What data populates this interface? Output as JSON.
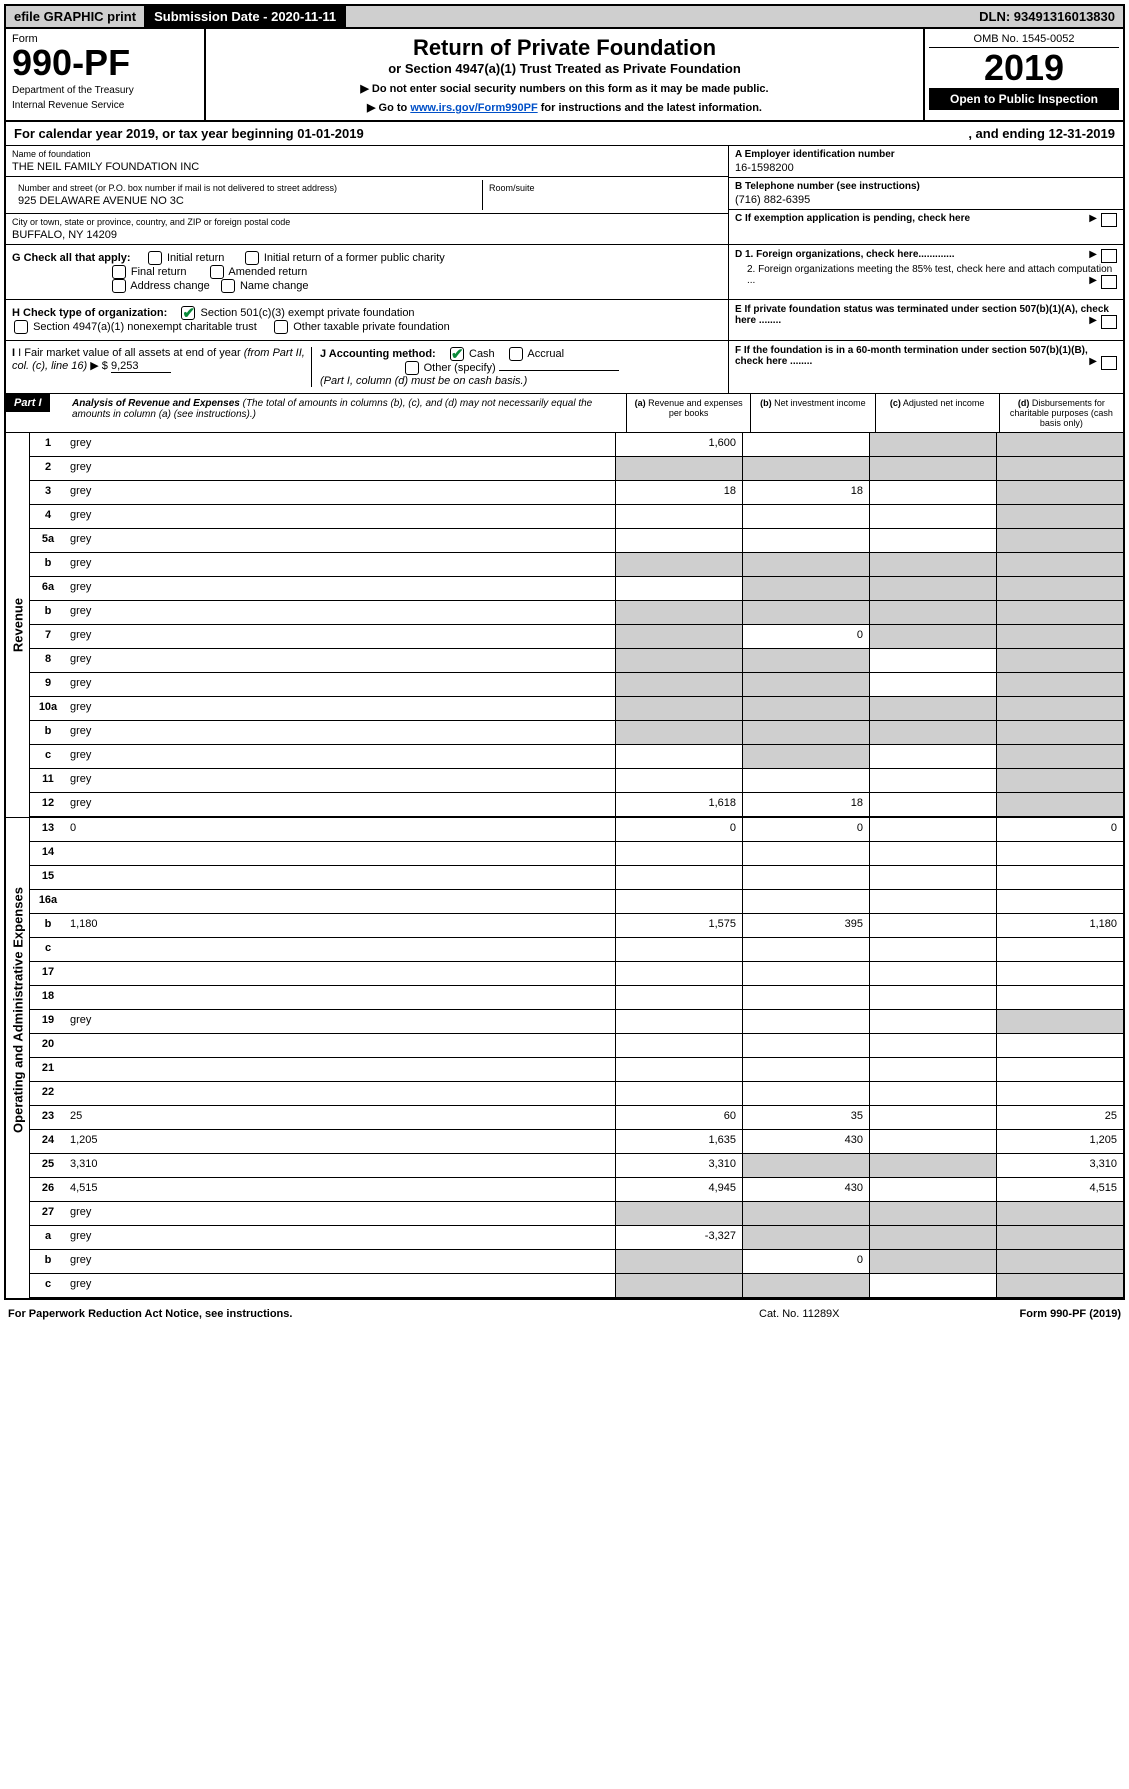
{
  "top": {
    "efile": "efile GRAPHIC print",
    "submission": "Submission Date - 2020-11-11",
    "dln": "DLN: 93491316013830"
  },
  "header": {
    "form_label": "Form",
    "form_number": "990-PF",
    "dept1": "Department of the Treasury",
    "dept2": "Internal Revenue Service",
    "title": "Return of Private Foundation",
    "subtitle": "or Section 4947(a)(1) Trust Treated as Private Foundation",
    "instr1": "▶ Do not enter social security numbers on this form as it may be made public.",
    "instr2_pre": "▶ Go to ",
    "instr2_link": "www.irs.gov/Form990PF",
    "instr2_post": " for instructions and the latest information.",
    "omb": "OMB No. 1545-0052",
    "year": "2019",
    "open": "Open to Public Inspection"
  },
  "calyear": {
    "left": "For calendar year 2019, or tax year beginning 01-01-2019",
    "right": ", and ending 12-31-2019"
  },
  "info": {
    "name_label": "Name of foundation",
    "name": "THE NEIL FAMILY FOUNDATION INC",
    "addr_label": "Number and street (or P.O. box number if mail is not delivered to street address)",
    "addr": "925 DELAWARE AVENUE NO 3C",
    "room_label": "Room/suite",
    "city_label": "City or town, state or province, country, and ZIP or foreign postal code",
    "city": "BUFFALO, NY  14209",
    "a_label": "A Employer identification number",
    "a_val": "16-1598200",
    "b_label": "B Telephone number (see instructions)",
    "b_val": "(716) 882-6395",
    "c_label": "C  If exemption application is pending, check here",
    "d1": "D 1. Foreign organizations, check here.............",
    "d2": "2. Foreign organizations meeting the 85% test, check here and attach computation ...",
    "e": "E  If private foundation status was terminated under section 507(b)(1)(A), check here ........",
    "f": "F  If the foundation is in a 60-month termination under section 507(b)(1)(B), check here ........"
  },
  "g": {
    "label": "G Check all that apply:",
    "opts": [
      "Initial return",
      "Final return",
      "Address change",
      "Initial return of a former public charity",
      "Amended return",
      "Name change"
    ]
  },
  "h": {
    "label": "H Check type of organization:",
    "opt1": "Section 501(c)(3) exempt private foundation",
    "opt2": "Section 4947(a)(1) nonexempt charitable trust",
    "opt3": "Other taxable private foundation"
  },
  "i": {
    "label_pre": "I Fair market value of all assets at end of year ",
    "label_ital": "(from Part II, col. (c), line 16)",
    "arrow": " ▶ $ ",
    "val": "9,253"
  },
  "j": {
    "label": "J Accounting method:",
    "cash": "Cash",
    "accrual": "Accrual",
    "other": "Other (specify)",
    "note": "(Part I, column (d) must be on cash basis.)"
  },
  "analysis": {
    "part": "Part I",
    "title": "Analysis of Revenue and Expenses",
    "note": " (The total of amounts in columns (b), (c), and (d) may not necessarily equal the amounts in column (a) (see instructions).)",
    "col_a": "(a)",
    "col_a_sub": "Revenue and expenses per books",
    "col_b": "(b)",
    "col_b_sub": "Net investment income",
    "col_c": "(c)",
    "col_c_sub": "Adjusted net income",
    "col_d": "(d)",
    "col_d_sub": "Disbursements for charitable purposes (cash basis only)"
  },
  "side_revenue": "Revenue",
  "side_expenses": "Operating and Administrative Expenses",
  "rows": [
    {
      "n": "1",
      "d": "grey",
      "a": "1,600",
      "b": "",
      "c": "grey"
    },
    {
      "n": "2",
      "d": "grey",
      "a": "grey",
      "b": "grey",
      "c": "grey"
    },
    {
      "n": "3",
      "d": "grey",
      "a": "18",
      "b": "18",
      "c": ""
    },
    {
      "n": "4",
      "d": "grey",
      "a": "",
      "b": "",
      "c": ""
    },
    {
      "n": "5a",
      "d": "grey",
      "a": "",
      "b": "",
      "c": ""
    },
    {
      "n": "b",
      "d": "grey",
      "a": "grey",
      "b": "grey",
      "c": "grey"
    },
    {
      "n": "6a",
      "d": "grey",
      "a": "",
      "b": "grey",
      "c": "grey"
    },
    {
      "n": "b",
      "d": "grey",
      "a": "grey",
      "b": "grey",
      "c": "grey"
    },
    {
      "n": "7",
      "d": "grey",
      "a": "grey",
      "b": "0",
      "c": "grey"
    },
    {
      "n": "8",
      "d": "grey",
      "a": "grey",
      "b": "grey",
      "c": ""
    },
    {
      "n": "9",
      "d": "grey",
      "a": "grey",
      "b": "grey",
      "c": ""
    },
    {
      "n": "10a",
      "d": "grey",
      "a": "grey",
      "b": "grey",
      "c": "grey"
    },
    {
      "n": "b",
      "d": "grey",
      "a": "grey",
      "b": "grey",
      "c": "grey"
    },
    {
      "n": "c",
      "d": "grey",
      "a": "",
      "b": "grey",
      "c": ""
    },
    {
      "n": "11",
      "d": "grey",
      "a": "",
      "b": "",
      "c": ""
    },
    {
      "n": "12",
      "d": "grey",
      "a": "1,618",
      "b": "18",
      "c": ""
    }
  ],
  "exp_rows": [
    {
      "n": "13",
      "d": "0",
      "a": "0",
      "b": "0",
      "c": ""
    },
    {
      "n": "14",
      "d": "",
      "a": "",
      "b": "",
      "c": ""
    },
    {
      "n": "15",
      "d": "",
      "a": "",
      "b": "",
      "c": ""
    },
    {
      "n": "16a",
      "d": "",
      "a": "",
      "b": "",
      "c": ""
    },
    {
      "n": "b",
      "d": "1,180",
      "a": "1,575",
      "b": "395",
      "c": ""
    },
    {
      "n": "c",
      "d": "",
      "a": "",
      "b": "",
      "c": ""
    },
    {
      "n": "17",
      "d": "",
      "a": "",
      "b": "",
      "c": ""
    },
    {
      "n": "18",
      "d": "",
      "a": "",
      "b": "",
      "c": ""
    },
    {
      "n": "19",
      "d": "grey",
      "a": "",
      "b": "",
      "c": ""
    },
    {
      "n": "20",
      "d": "",
      "a": "",
      "b": "",
      "c": ""
    },
    {
      "n": "21",
      "d": "",
      "a": "",
      "b": "",
      "c": ""
    },
    {
      "n": "22",
      "d": "",
      "a": "",
      "b": "",
      "c": ""
    },
    {
      "n": "23",
      "d": "25",
      "a": "60",
      "b": "35",
      "c": ""
    },
    {
      "n": "24",
      "d": "1,205",
      "a": "1,635",
      "b": "430",
      "c": ""
    },
    {
      "n": "25",
      "d": "3,310",
      "a": "3,310",
      "b": "grey",
      "c": "grey"
    },
    {
      "n": "26",
      "d": "4,515",
      "a": "4,945",
      "b": "430",
      "c": ""
    }
  ],
  "bottom_rows": [
    {
      "n": "27",
      "d": "grey",
      "a": "grey",
      "b": "grey",
      "c": "grey"
    },
    {
      "n": "a",
      "d": "grey",
      "a": "-3,327",
      "b": "grey",
      "c": "grey"
    },
    {
      "n": "b",
      "d": "grey",
      "a": "grey",
      "b": "0",
      "c": "grey"
    },
    {
      "n": "c",
      "d": "grey",
      "a": "grey",
      "b": "grey",
      "c": ""
    }
  ],
  "footer": {
    "l": "For Paperwork Reduction Act Notice, see instructions.",
    "c": "Cat. No. 11289X",
    "r": "Form 990-PF (2019)"
  }
}
